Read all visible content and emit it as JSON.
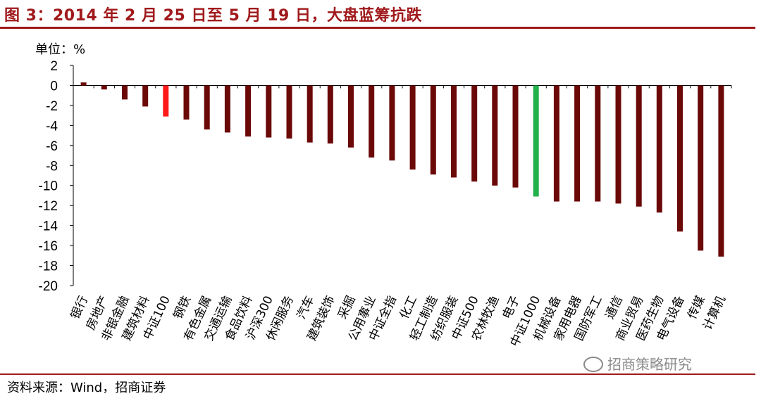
{
  "title": "图 3：2014 年 2 月 25 日至 5 月 19 日，大盘蓝筹抗跌",
  "unit_label": "单位：%",
  "source": "资料来源：Wind，招商证券",
  "watermark": "招商策略研究",
  "colors": {
    "default_bar": "#6b0808",
    "highlight_red": "#ff1a1a",
    "highlight_green": "#22b14c",
    "accent": "#a0191b"
  },
  "chart_data": {
    "type": "bar",
    "title": "",
    "xlabel": "",
    "ylabel": "单位：%",
    "ylim": [
      -20,
      2
    ],
    "yticks": [
      2,
      0,
      -2,
      -4,
      -6,
      -8,
      -10,
      -12,
      -14,
      -16,
      -18,
      -20
    ],
    "grid": false,
    "categories": [
      "银行",
      "房地产",
      "非银金融",
      "建筑材料",
      "中证100",
      "钢铁",
      "有色金属",
      "交通运输",
      "食品饮料",
      "沪深300",
      "休闲服务",
      "汽车",
      "建筑装饰",
      "采掘",
      "公用事业",
      "中证全指",
      "化工",
      "轻工制造",
      "纺织服装",
      "中证500",
      "农林牧渔",
      "电子",
      "中证1000",
      "机械设备",
      "家用电器",
      "国防军工",
      "通信",
      "商业贸易",
      "医药生物",
      "电气设备",
      "传媒",
      "计算机"
    ],
    "values": [
      0.3,
      -0.4,
      -1.4,
      -2.1,
      -3.1,
      -3.4,
      -4.4,
      -4.7,
      -5.1,
      -5.2,
      -5.3,
      -5.7,
      -5.8,
      -6.2,
      -7.2,
      -7.5,
      -8.4,
      -8.9,
      -9.2,
      -9.6,
      -10.0,
      -10.2,
      -11.1,
      -11.6,
      -11.6,
      -11.6,
      -11.8,
      -12.1,
      -12.7,
      -14.6,
      -16.5,
      -17.1
    ],
    "highlights": {
      "中证100": "red",
      "中证1000": "green"
    }
  }
}
